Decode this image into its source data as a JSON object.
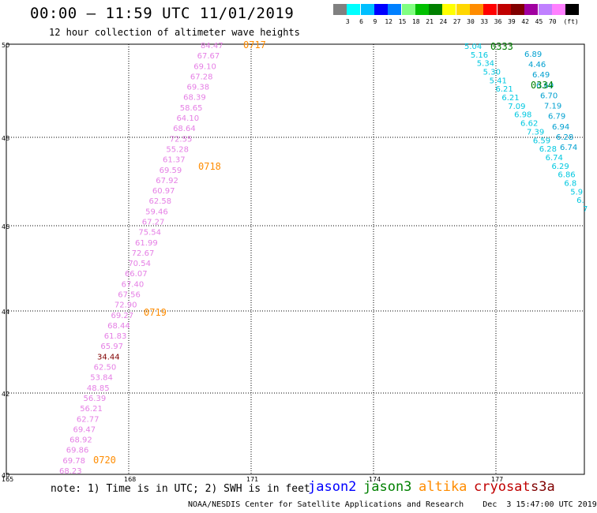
{
  "header": {
    "title": "00:00 – 11:59 UTC 11/01/2019",
    "subtitle": "12 hour collection of altimeter wave heights"
  },
  "colorbar": {
    "unit": "(ft)",
    "colors": [
      "#808080",
      "#00ffff",
      "#00bfff",
      "#0000ff",
      "#0080ff",
      "#80ff80",
      "#00c000",
      "#008000",
      "#ffff00",
      "#ffd700",
      "#ff8c00",
      "#ff0000",
      "#c00000",
      "#800000",
      "#a000a0",
      "#c080ff",
      "#ff80ff",
      "#000000"
    ],
    "labels": [
      "3",
      "6",
      "9",
      "12",
      "15",
      "18",
      "21",
      "24",
      "27",
      "30",
      "33",
      "36",
      "39",
      "42",
      "45",
      "70"
    ]
  },
  "axes": {
    "lat_labels": [
      "50",
      "48",
      "46",
      "44",
      "42",
      "40"
    ],
    "lon_labels": [
      "165",
      "168",
      "171",
      "174",
      "177"
    ]
  },
  "tracks": {
    "west_values": [
      "84.47",
      "67.67",
      "69.10",
      "67.28",
      "69.38",
      "68.39",
      "58.65",
      "64.10",
      "68.64",
      "72.55",
      "55.28",
      "61.37",
      "69.59",
      "67.92",
      "60.97",
      "62.58",
      "59.46",
      "67.27",
      "75.54",
      "61.99",
      "72.67",
      "70.54",
      "66.07",
      "67.40",
      "67.56",
      "72.90",
      "69.27",
      "68.44",
      "61.83",
      "65.97",
      "34.44",
      "62.50",
      "53.84",
      "48.85",
      "56.39",
      "56.21",
      "62.77",
      "69.47",
      "68.92",
      "69.86",
      "69.78",
      "68.23"
    ],
    "west_times": [
      "0717",
      "0718",
      "0719",
      "0720"
    ],
    "east_values_a": [
      "5.04",
      "5.16",
      "5.34",
      "5.30",
      "5.41",
      "6.21",
      "6.21",
      "7.09",
      "6.98",
      "6.62",
      "7.39",
      "6.59",
      "6.28",
      "6.74",
      "6.29",
      "6.86",
      "6.8",
      "5.9",
      "6.",
      "7"
    ],
    "east_values_b": [
      "6.89",
      "4.46",
      "6.49",
      "6.69",
      "6.70",
      "7.19",
      "6.79",
      "6.94",
      "6.28",
      "6.74"
    ],
    "east_times": [
      "0333",
      "0334"
    ]
  },
  "footer": {
    "note": "note: 1) Time is in UTC; 2) SWH is in feet",
    "satellites": [
      {
        "name": "jason2",
        "color": "#0000ff"
      },
      {
        "name": "jason3",
        "color": "#008000"
      },
      {
        "name": "altika",
        "color": "#ff8c00"
      },
      {
        "name": "cryosat",
        "color": "#c00000"
      },
      {
        "name": "s3a",
        "color": "#800000"
      }
    ],
    "credit": "NOAA/NESDIS Center for Satellite Applications and Research    Dec  3 15:47:00 UTC 2019"
  }
}
